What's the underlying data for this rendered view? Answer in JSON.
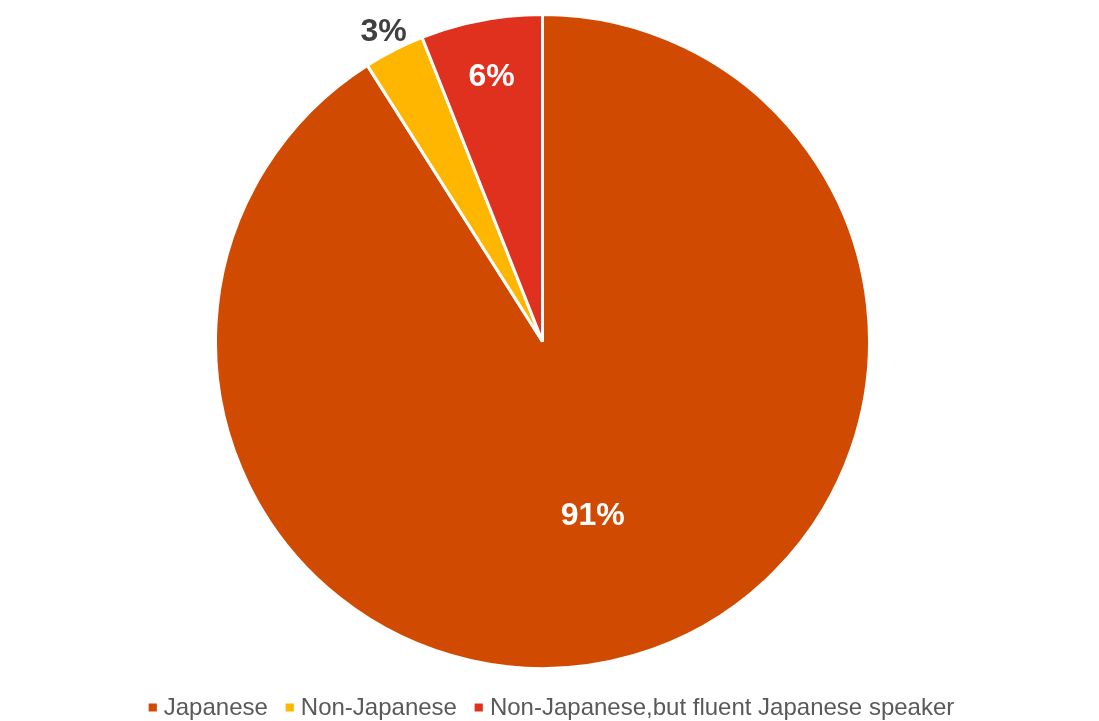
{
  "chart_data": {
    "type": "pie",
    "categories": [
      "Japanese",
      "Non-Japanese",
      "Non-Japanese,but fluent Japanese speaker"
    ],
    "values": [
      91,
      3,
      6
    ],
    "colors": [
      "#d04a02",
      "#ffb600",
      "#e0301e"
    ],
    "value_labels": [
      "91%",
      "3%",
      "6%"
    ],
    "legend": "bottom"
  }
}
